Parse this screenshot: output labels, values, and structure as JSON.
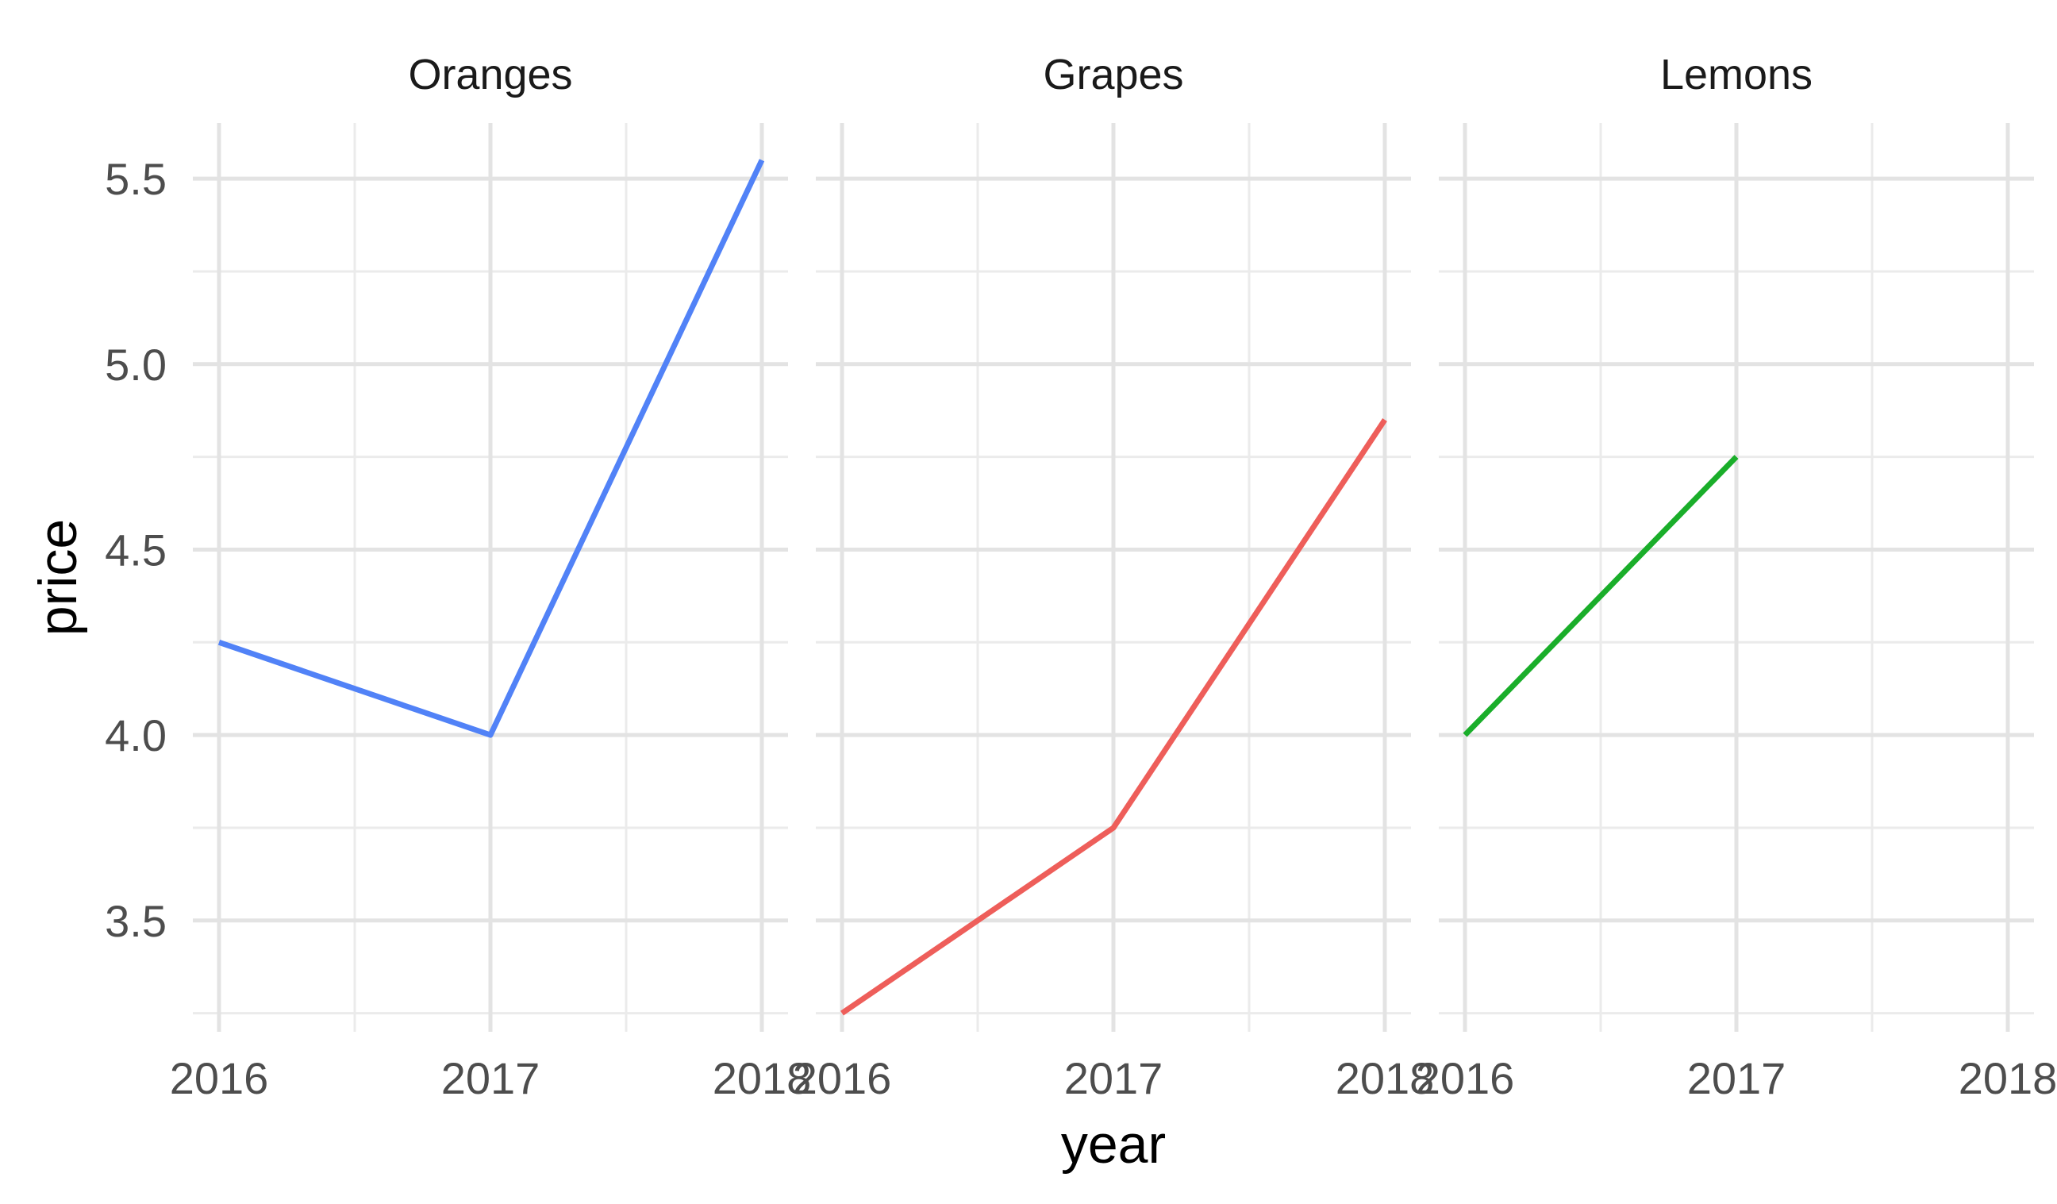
{
  "chart_data": {
    "type": "line",
    "xlabel": "year",
    "ylabel": "price",
    "x_ticks": [
      "2016",
      "2017",
      "2018"
    ],
    "y_ticks": [
      "3.5",
      "4.0",
      "4.5",
      "5.0",
      "5.5"
    ],
    "xlim": [
      2016,
      2018
    ],
    "ylim": [
      3.2,
      5.65
    ],
    "grid": true,
    "facets": [
      {
        "title": "Oranges",
        "color": "#5182f7",
        "points": [
          {
            "x": 2016,
            "y": 4.25
          },
          {
            "x": 2017,
            "y": 4.0
          },
          {
            "x": 2018,
            "y": 5.55
          }
        ]
      },
      {
        "title": "Grapes",
        "color": "#ee5e5a",
        "points": [
          {
            "x": 2016,
            "y": 3.25
          },
          {
            "x": 2017,
            "y": 3.75
          },
          {
            "x": 2018,
            "y": 4.85
          }
        ]
      },
      {
        "title": "Lemons",
        "color": "#1aae2a",
        "points": [
          {
            "x": 2016,
            "y": 4.0
          },
          {
            "x": 2017,
            "y": 4.75
          }
        ]
      }
    ]
  }
}
